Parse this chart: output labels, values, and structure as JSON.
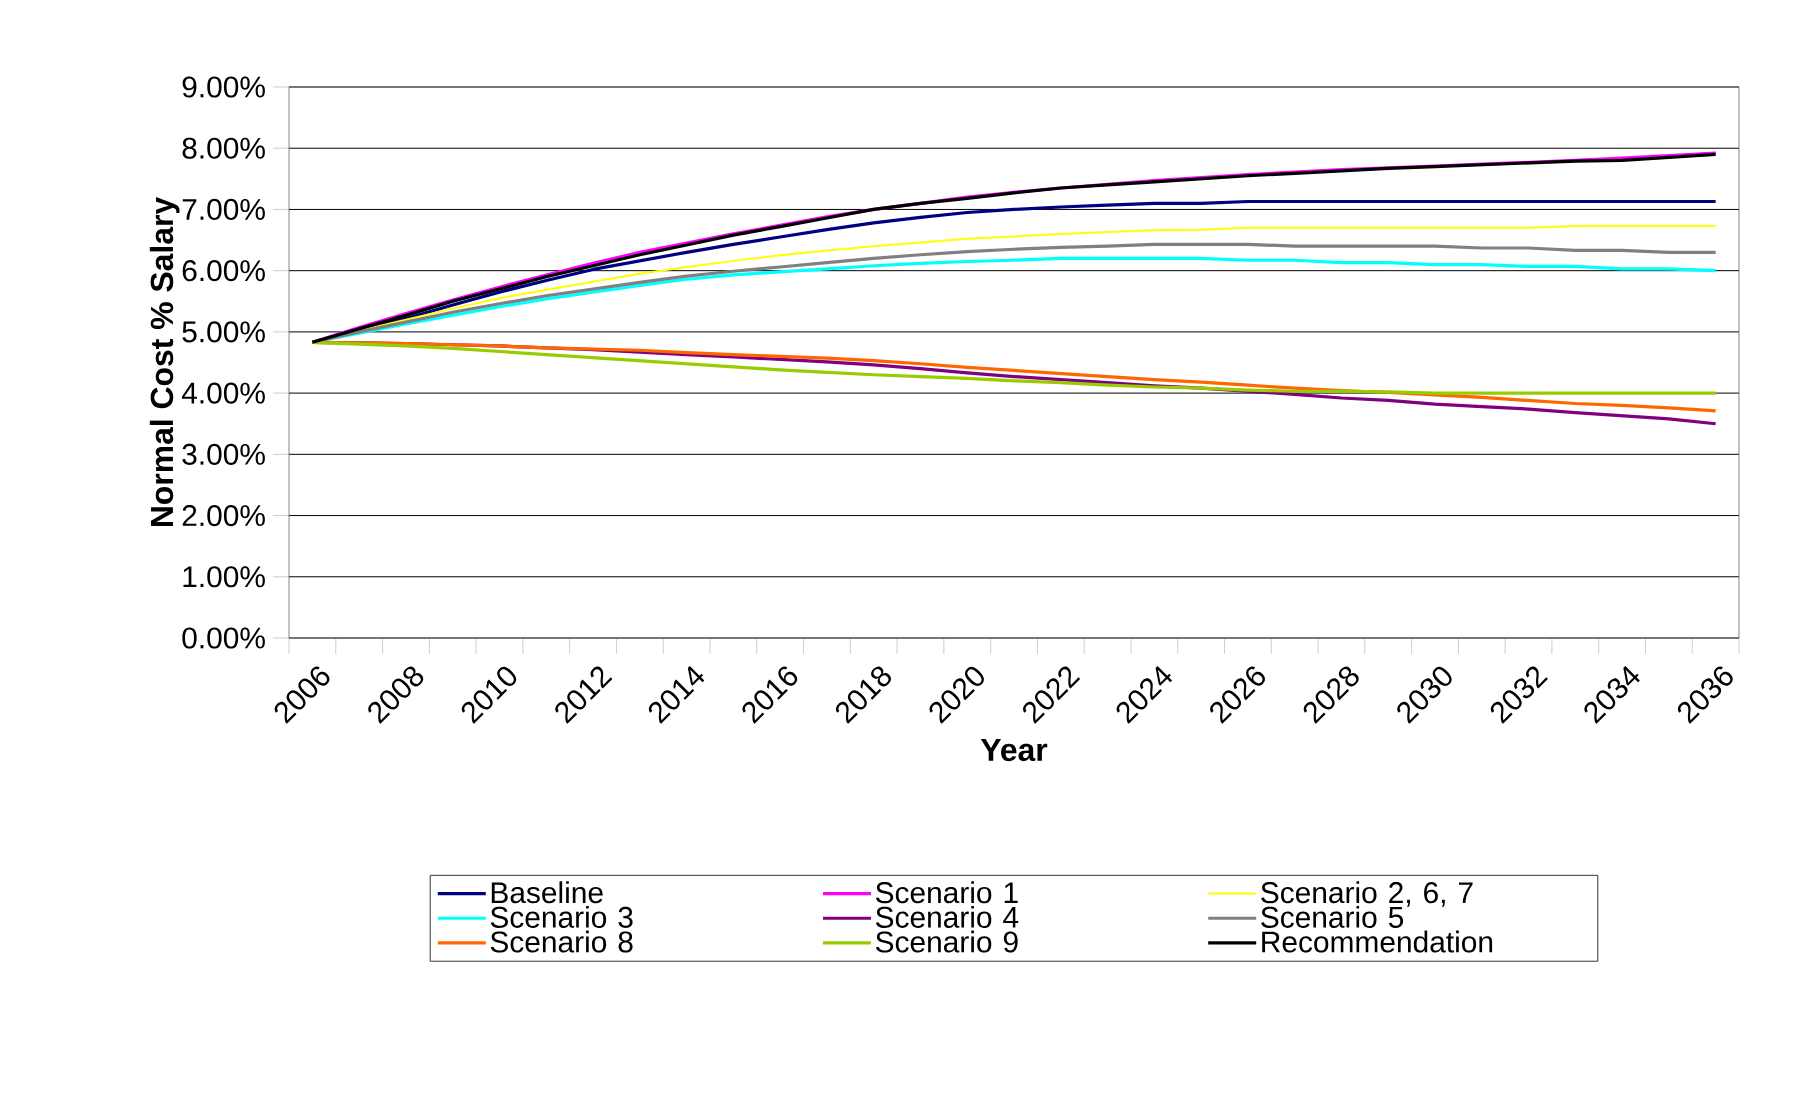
{
  "chart_data": {
    "type": "line",
    "xlabel": "Year",
    "ylabel": "Normal Cost % Salary",
    "categories": [
      "2006",
      null,
      "2008",
      null,
      "2010",
      null,
      "2012",
      null,
      "2014",
      null,
      "2016",
      null,
      "2018",
      null,
      "2020",
      null,
      "2022",
      null,
      "2024",
      null,
      "2026",
      null,
      "2028",
      null,
      "2030",
      null,
      "2032",
      null,
      "2034",
      null,
      "2036"
    ],
    "series": [
      {
        "name": "Baseline",
        "color": "#000080",
        "values": [
          4.83,
          5.03,
          5.22,
          5.44,
          5.65,
          5.84,
          6.02,
          6.16,
          6.3,
          6.43,
          6.55,
          6.67,
          6.78,
          6.87,
          6.95,
          7.0,
          7.04,
          7.07,
          7.1,
          7.1,
          7.13,
          7.13,
          7.13,
          7.13,
          7.13,
          7.13,
          7.13,
          7.13,
          7.13,
          7.13,
          7.13
        ]
      },
      {
        "name": "Scenario 1",
        "color": "#ff00ff",
        "values": [
          4.83,
          5.07,
          5.3,
          5.52,
          5.73,
          5.93,
          6.12,
          6.3,
          6.45,
          6.6,
          6.74,
          6.88,
          7.0,
          7.1,
          7.2,
          7.28,
          7.35,
          7.41,
          7.47,
          7.52,
          7.57,
          7.61,
          7.65,
          7.68,
          7.71,
          7.74,
          7.77,
          7.8,
          7.84,
          7.88,
          7.92
        ]
      },
      {
        "name": "Scenario 2, 6, 7",
        "color": "#ffff00",
        "values": [
          4.83,
          5.02,
          5.2,
          5.38,
          5.55,
          5.69,
          5.82,
          5.95,
          6.06,
          6.16,
          6.25,
          6.33,
          6.4,
          6.46,
          6.52,
          6.56,
          6.6,
          6.63,
          6.66,
          6.67,
          6.7,
          6.7,
          6.7,
          6.7,
          6.7,
          6.7,
          6.7,
          6.73,
          6.73,
          6.73,
          6.73
        ]
      },
      {
        "name": "Scenario 3",
        "color": "#00ffff",
        "values": [
          4.83,
          4.98,
          5.13,
          5.27,
          5.41,
          5.54,
          5.65,
          5.76,
          5.86,
          5.93,
          5.98,
          6.03,
          6.08,
          6.12,
          6.15,
          6.17,
          6.2,
          6.2,
          6.2,
          6.2,
          6.17,
          6.17,
          6.13,
          6.13,
          6.1,
          6.1,
          6.07,
          6.07,
          6.03,
          6.03,
          6.0
        ]
      },
      {
        "name": "Scenario 4",
        "color": "#800080",
        "values": [
          4.83,
          4.82,
          4.81,
          4.79,
          4.77,
          4.74,
          4.71,
          4.67,
          4.63,
          4.59,
          4.55,
          4.51,
          4.46,
          4.4,
          4.33,
          4.27,
          4.22,
          4.17,
          4.12,
          4.08,
          4.03,
          3.98,
          3.92,
          3.88,
          3.82,
          3.78,
          3.74,
          3.68,
          3.63,
          3.58,
          3.5
        ]
      },
      {
        "name": "Scenario 5",
        "color": "#808080",
        "values": [
          4.83,
          5.0,
          5.16,
          5.32,
          5.46,
          5.59,
          5.7,
          5.81,
          5.91,
          5.99,
          6.06,
          6.13,
          6.2,
          6.26,
          6.31,
          6.35,
          6.38,
          6.4,
          6.43,
          6.43,
          6.43,
          6.4,
          6.4,
          6.4,
          6.4,
          6.37,
          6.37,
          6.33,
          6.33,
          6.3,
          6.3
        ]
      },
      {
        "name": "Scenario 8",
        "color": "#ff6600",
        "values": [
          4.83,
          4.82,
          4.81,
          4.79,
          4.77,
          4.74,
          4.72,
          4.7,
          4.66,
          4.63,
          4.6,
          4.57,
          4.53,
          4.48,
          4.42,
          4.37,
          4.32,
          4.27,
          4.22,
          4.18,
          4.13,
          4.08,
          4.04,
          4.01,
          3.97,
          3.93,
          3.88,
          3.83,
          3.8,
          3.76,
          3.71
        ]
      },
      {
        "name": "Scenario 9",
        "color": "#99cc00",
        "values": [
          4.83,
          4.8,
          4.77,
          4.73,
          4.68,
          4.63,
          4.58,
          4.53,
          4.48,
          4.43,
          4.38,
          4.34,
          4.3,
          4.27,
          4.24,
          4.2,
          4.17,
          4.13,
          4.1,
          4.08,
          4.05,
          4.03,
          4.03,
          4.02,
          4.0,
          4.0,
          4.0,
          4.0,
          4.0,
          4.0,
          4.0
        ]
      },
      {
        "name": "Recommendation",
        "color": "#000000",
        "values": [
          4.83,
          5.05,
          5.27,
          5.5,
          5.7,
          5.9,
          6.08,
          6.26,
          6.42,
          6.58,
          6.72,
          6.86,
          7.0,
          7.1,
          7.18,
          7.27,
          7.35,
          7.4,
          7.45,
          7.5,
          7.55,
          7.59,
          7.63,
          7.67,
          7.7,
          7.73,
          7.76,
          7.79,
          7.8,
          7.85,
          7.9
        ]
      }
    ],
    "ylim": [
      0,
      9
    ],
    "yticks": [
      {
        "value": 0,
        "label": "0.00%"
      },
      {
        "value": 1,
        "label": "1.00%"
      },
      {
        "value": 2,
        "label": "2.00%"
      },
      {
        "value": 3,
        "label": "3.00%"
      },
      {
        "value": 4,
        "label": "4.00%"
      },
      {
        "value": 5,
        "label": "5.00%"
      },
      {
        "value": 6,
        "label": "6.00%"
      },
      {
        "value": 7,
        "label": "7.00%"
      },
      {
        "value": 8,
        "label": "8.00%"
      },
      {
        "value": 9,
        "label": "9.00%"
      }
    ],
    "grid": "y",
    "legend": "bottom"
  }
}
